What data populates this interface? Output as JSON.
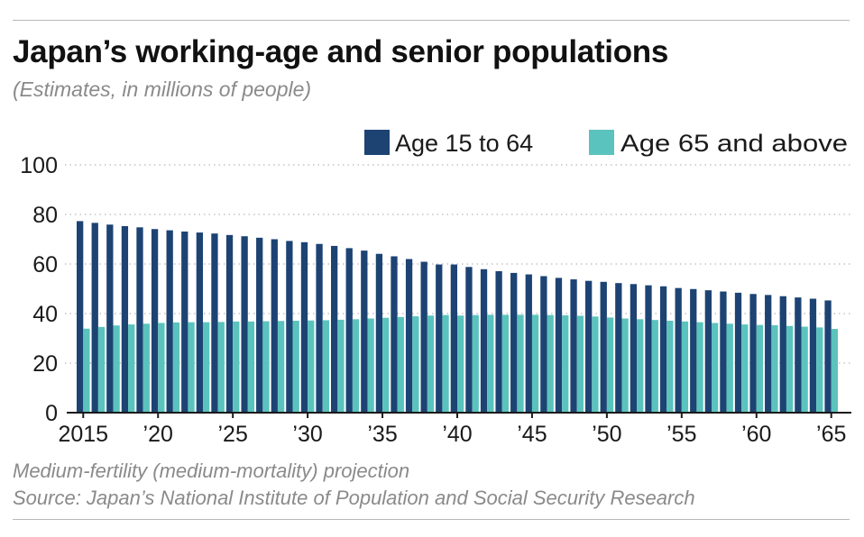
{
  "title": "Japan’s working-age and senior populations",
  "subtitle": "(Estimates, in millions of people)",
  "footnote": "Medium-fertility (medium-mortality) projection",
  "source": "Source: Japan’s National Institute of Population and Social Security Research",
  "chart_data": {
    "type": "bar",
    "ylim": [
      0,
      100
    ],
    "yticks": [
      0,
      20,
      40,
      60,
      80,
      100
    ],
    "grid": true,
    "legend_position": "top-right",
    "x": [
      2015,
      2016,
      2017,
      2018,
      2019,
      2020,
      2021,
      2022,
      2023,
      2024,
      2025,
      2026,
      2027,
      2028,
      2029,
      2030,
      2031,
      2032,
      2033,
      2034,
      2035,
      2036,
      2037,
      2038,
      2039,
      2040,
      2041,
      2042,
      2043,
      2044,
      2045,
      2046,
      2047,
      2048,
      2049,
      2050,
      2051,
      2052,
      2053,
      2054,
      2055,
      2056,
      2057,
      2058,
      2059,
      2060,
      2061,
      2062,
      2063,
      2064,
      2065
    ],
    "xtick_values": [
      2015,
      2020,
      2025,
      2030,
      2035,
      2040,
      2045,
      2050,
      2055,
      2060,
      2065
    ],
    "xtick_labels": [
      "2015",
      "’20",
      "’25",
      "’30",
      "’35",
      "’40",
      "’45",
      "’50",
      "’55",
      "’60",
      "’65"
    ],
    "series": [
      {
        "name": "Age 15 to 64",
        "color": "#1d4373",
        "values": [
          77.3,
          76.6,
          75.9,
          75.3,
          74.8,
          74.1,
          73.6,
          73.1,
          72.7,
          72.3,
          71.7,
          71.2,
          70.6,
          70.0,
          69.3,
          68.8,
          68.1,
          67.3,
          66.4,
          65.4,
          64.1,
          63.1,
          62.0,
          60.9,
          59.8,
          59.8,
          58.8,
          57.9,
          57.1,
          56.4,
          55.8,
          55.1,
          54.4,
          53.8,
          53.2,
          52.8,
          52.3,
          51.9,
          51.4,
          51.0,
          50.3,
          49.9,
          49.4,
          48.9,
          48.4,
          47.9,
          47.5,
          47.0,
          46.5,
          46.0,
          45.3
        ]
      },
      {
        "name": "Age 65 and above",
        "color": "#5bc3bd",
        "values": [
          33.9,
          34.6,
          35.2,
          35.6,
          35.9,
          36.2,
          36.4,
          36.5,
          36.5,
          36.6,
          36.8,
          36.8,
          36.9,
          37.0,
          37.1,
          37.2,
          37.3,
          37.5,
          37.7,
          38.0,
          38.3,
          38.6,
          38.9,
          39.2,
          39.4,
          39.2,
          39.4,
          39.5,
          39.5,
          39.5,
          39.5,
          39.4,
          39.3,
          39.1,
          38.8,
          38.4,
          38.0,
          37.7,
          37.4,
          37.1,
          36.8,
          36.5,
          36.2,
          35.9,
          35.6,
          35.4,
          35.3,
          35.0,
          34.7,
          34.4,
          33.8
        ]
      }
    ]
  }
}
